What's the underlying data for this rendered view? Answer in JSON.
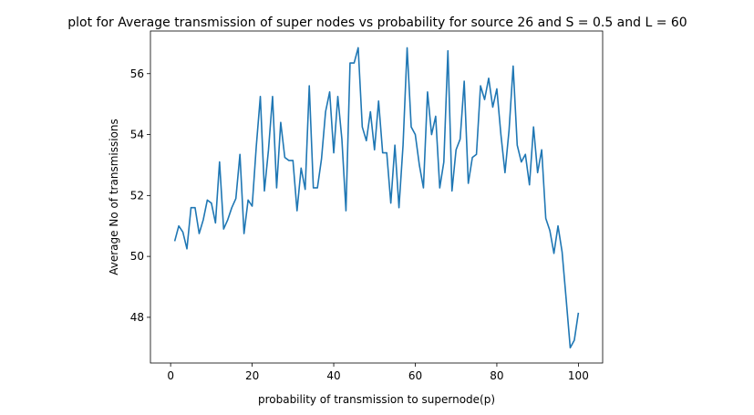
{
  "chart_data": {
    "type": "line",
    "title": "plot for Average transmission of super nodes vs probability for source 26 and S = 0.5 and L = 60",
    "xlabel": "probability of transmission to supernode(p)",
    "ylabel": "Average No of transmissions",
    "xlim": [
      -4.95,
      105.95
    ],
    "ylim": [
      46.5,
      57.4
    ],
    "xticks": [
      0,
      20,
      40,
      60,
      80,
      100
    ],
    "yticks": [
      48,
      50,
      52,
      54,
      56
    ],
    "grid": false,
    "line_color": "#1f77b4",
    "series": [
      {
        "x": [
          1,
          2,
          3,
          4,
          5,
          6,
          7,
          8,
          9,
          10,
          11,
          12,
          13,
          14,
          15,
          16,
          17,
          18,
          19,
          20,
          21,
          22,
          23,
          24,
          25,
          26,
          27,
          28,
          29,
          30,
          31,
          32,
          33,
          34,
          35,
          36,
          37,
          38,
          39,
          40,
          41,
          42,
          43,
          44,
          45,
          46,
          47,
          48,
          49,
          50,
          51,
          52,
          53,
          54,
          55,
          56,
          57,
          58,
          59,
          60,
          61,
          62,
          63,
          64,
          65,
          66,
          67,
          68,
          69,
          70,
          71,
          72,
          73,
          74,
          75,
          76,
          77,
          78,
          79,
          80,
          81,
          82,
          83,
          84,
          85,
          86,
          87,
          88,
          89,
          90,
          91,
          92,
          93,
          94,
          95,
          96,
          97,
          98,
          99,
          100
        ],
        "values": [
          50.5,
          51.0,
          50.8,
          50.25,
          51.6,
          51.6,
          50.75,
          51.2,
          51.85,
          51.75,
          51.1,
          53.1,
          50.9,
          51.2,
          51.6,
          51.9,
          53.35,
          50.75,
          51.85,
          51.65,
          53.6,
          55.25,
          52.15,
          53.5,
          55.25,
          52.25,
          54.4,
          53.25,
          53.15,
          53.15,
          51.5,
          52.9,
          52.2,
          55.6,
          52.25,
          52.25,
          53.2,
          54.75,
          55.4,
          53.4,
          55.25,
          53.85,
          51.5,
          56.35,
          56.35,
          56.85,
          54.25,
          53.8,
          54.75,
          53.5,
          55.1,
          53.4,
          53.4,
          51.75,
          53.65,
          51.6,
          53.65,
          56.85,
          54.25,
          54.0,
          53.0,
          52.25,
          55.4,
          54.0,
          54.6,
          52.25,
          53.1,
          56.75,
          52.15,
          53.5,
          53.85,
          55.75,
          52.4,
          53.25,
          53.35,
          55.6,
          55.15,
          55.85,
          54.9,
          55.5,
          54.0,
          52.75,
          54.15,
          56.25,
          53.65,
          53.1,
          53.35,
          52.35,
          54.25,
          52.75,
          53.5,
          51.25,
          50.85,
          50.1,
          51.0,
          50.15,
          48.6,
          47.0,
          47.25,
          48.15
        ]
      }
    ]
  }
}
